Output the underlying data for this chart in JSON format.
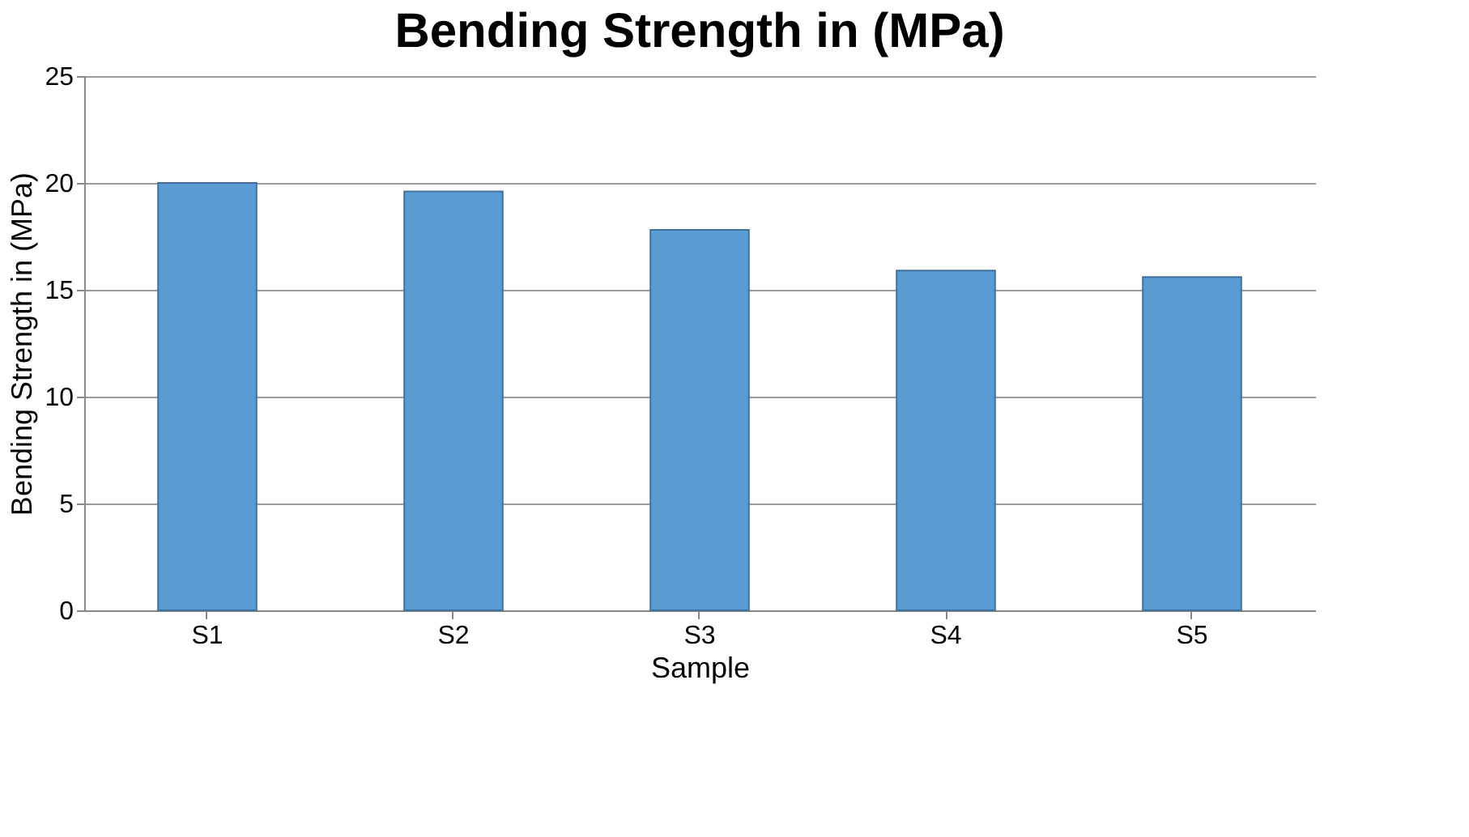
{
  "chart_data": {
    "type": "bar",
    "title": "Bending Strength in (MPa)",
    "xlabel": "Sample",
    "ylabel": "Bending Strength in (MPa)",
    "categories": [
      "S1",
      "S2",
      "S3",
      "S4",
      "S5"
    ],
    "values": [
      20,
      19.6,
      17.8,
      15.9,
      15.6
    ],
    "color": "#5b9bd5",
    "ylim": [
      0,
      25
    ],
    "yticks": [
      0,
      5,
      10,
      15,
      20,
      25
    ],
    "grid": "y"
  }
}
